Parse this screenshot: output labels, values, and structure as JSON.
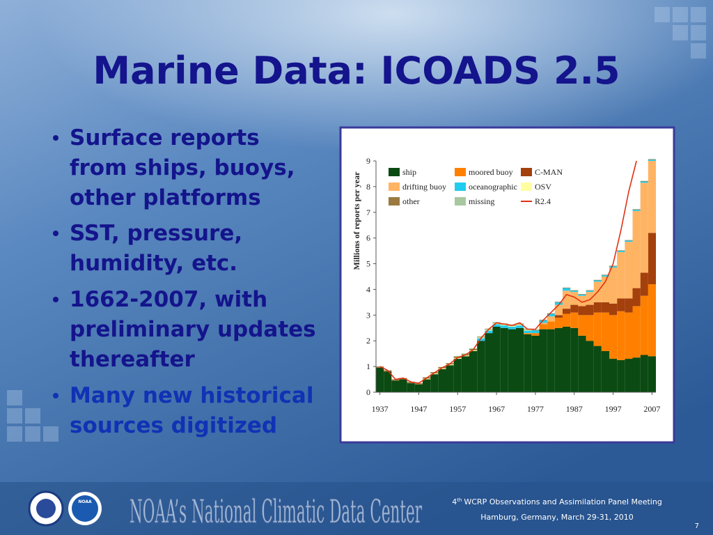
{
  "slide": {
    "title": "Marine Data: ICOADS 2.5",
    "bullets": [
      [
        "Surface reports",
        "from ships, buoys,",
        "other platforms"
      ],
      [
        "SST, pressure,",
        "humidity, etc."
      ],
      [
        "1662-2007, with",
        "preliminary updates",
        "thereafter"
      ],
      [
        "Many new historical",
        "sources digitized"
      ]
    ],
    "footer": {
      "center_name": "NOAA’s National Climatic Data Center",
      "logo": "NOAA",
      "meeting_number": "4",
      "meeting_suffix": "th",
      "meeting_rest": "WCRP Observations and Assimilation Panel Meeting",
      "location": "Hamburg, Germany, March 29-31, 2010",
      "page": "7"
    }
  },
  "chart_data": {
    "type": "bar",
    "stacked": true,
    "y_label": "Millions of reports per year",
    "x": [
      1937,
      1939,
      1941,
      1943,
      1945,
      1947,
      1949,
      1951,
      1953,
      1955,
      1957,
      1959,
      1961,
      1963,
      1965,
      1967,
      1969,
      1971,
      1973,
      1975,
      1977,
      1979,
      1981,
      1983,
      1985,
      1987,
      1989,
      1991,
      1993,
      1995,
      1997,
      1999,
      2001,
      2003,
      2005,
      2007
    ],
    "xlim": [
      1936,
      2008
    ],
    "xticks": [
      1937,
      1947,
      1957,
      1967,
      1977,
      1987,
      1997,
      2007
    ],
    "ylim": [
      0,
      9
    ],
    "yticks": [
      0,
      1,
      2,
      3,
      4,
      5,
      6,
      7,
      8,
      9
    ],
    "grid": false,
    "legend": "top-left",
    "series": [
      {
        "name": "ship",
        "color": "#0b4a12",
        "values": [
          0.95,
          0.8,
          0.45,
          0.5,
          0.35,
          0.3,
          0.5,
          0.7,
          0.9,
          1.05,
          1.3,
          1.4,
          1.6,
          2.0,
          2.3,
          2.55,
          2.5,
          2.45,
          2.5,
          2.25,
          2.2,
          2.45,
          2.45,
          2.5,
          2.55,
          2.5,
          2.2,
          2.0,
          1.8,
          1.6,
          1.3,
          1.25,
          1.3,
          1.35,
          1.45,
          1.4
        ]
      },
      {
        "name": "moored buoy",
        "color": "#ff8000",
        "values": [
          0,
          0,
          0,
          0,
          0,
          0,
          0,
          0,
          0,
          0,
          0,
          0,
          0,
          0,
          0,
          0,
          0,
          0,
          0,
          0.05,
          0.1,
          0.2,
          0.3,
          0.4,
          0.5,
          0.6,
          0.8,
          1.0,
          1.3,
          1.5,
          1.7,
          1.9,
          1.8,
          2.0,
          2.3,
          2.8
        ]
      },
      {
        "name": "C-MAN",
        "color": "#a3400c",
        "values": [
          0,
          0,
          0,
          0,
          0,
          0,
          0,
          0,
          0,
          0,
          0,
          0,
          0,
          0,
          0,
          0,
          0,
          0,
          0,
          0,
          0,
          0,
          0,
          0.1,
          0.2,
          0.3,
          0.35,
          0.4,
          0.4,
          0.4,
          0.45,
          0.5,
          0.55,
          0.7,
          0.9,
          2.0
        ]
      },
      {
        "name": "drifting buoy",
        "color": "#ffb464",
        "values": [
          0,
          0,
          0,
          0,
          0,
          0,
          0,
          0,
          0,
          0,
          0,
          0,
          0,
          0,
          0,
          0,
          0,
          0,
          0,
          0,
          0,
          0.05,
          0.2,
          0.4,
          0.7,
          0.5,
          0.4,
          0.5,
          0.8,
          1.0,
          1.4,
          1.8,
          2.2,
          3.0,
          3.5,
          2.8
        ]
      },
      {
        "name": "oceanographic",
        "color": "#22ccee",
        "values": [
          0,
          0,
          0,
          0,
          0,
          0,
          0,
          0,
          0,
          0,
          0,
          0,
          0,
          0.1,
          0.1,
          0.1,
          0.1,
          0.1,
          0.1,
          0.1,
          0.1,
          0.1,
          0.1,
          0.1,
          0.1,
          0.05,
          0.05,
          0.05,
          0.05,
          0.05,
          0.05,
          0.05,
          0.05,
          0.05,
          0.05,
          0.05
        ]
      },
      {
        "name": "OSV",
        "color": "#ffffa0",
        "values": [
          0,
          0,
          0,
          0,
          0,
          0,
          0.03,
          0.03,
          0.03,
          0.03,
          0.03,
          0.03,
          0.03,
          0.03,
          0.03,
          0.03,
          0.03,
          0.03,
          0.03,
          0.03,
          0,
          0,
          0,
          0,
          0,
          0,
          0,
          0,
          0,
          0,
          0,
          0,
          0,
          0,
          0,
          0
        ]
      },
      {
        "name": "other",
        "color": "#9a7a40",
        "values": [
          0.05,
          0.05,
          0.05,
          0.05,
          0.05,
          0.05,
          0.05,
          0.05,
          0.05,
          0.05,
          0.05,
          0.05,
          0.05,
          0.02,
          0.02,
          0.02,
          0.02,
          0.02,
          0.02,
          0.02,
          0.02,
          0.02,
          0.02,
          0.02,
          0.02,
          0.02,
          0.02,
          0.02,
          0.02,
          0.02,
          0.02,
          0.02,
          0.02,
          0.02,
          0.02,
          0.02
        ]
      },
      {
        "name": "missing",
        "color": "#a8c8a0",
        "values": [
          0,
          0,
          0,
          0,
          0,
          0,
          0,
          0,
          0,
          0,
          0.03,
          0.03,
          0.03,
          0.03,
          0.03,
          0.03,
          0.03,
          0.03,
          0.03,
          0.03,
          0.03,
          0,
          0,
          0,
          0,
          0,
          0,
          0,
          0,
          0,
          0,
          0,
          0,
          0,
          0,
          0
        ]
      },
      {
        "name": "R2.4",
        "color": "#e03010",
        "type": "line",
        "values": [
          1.0,
          0.85,
          0.5,
          0.55,
          0.4,
          0.35,
          0.55,
          0.75,
          0.95,
          1.1,
          1.35,
          1.45,
          1.65,
          2.1,
          2.45,
          2.7,
          2.65,
          2.6,
          2.7,
          2.45,
          2.45,
          2.8,
          3.1,
          3.4,
          3.8,
          3.7,
          3.5,
          3.6,
          3.9,
          4.3,
          5.0,
          6.3,
          7.8,
          9.0,
          null,
          null
        ]
      }
    ]
  }
}
